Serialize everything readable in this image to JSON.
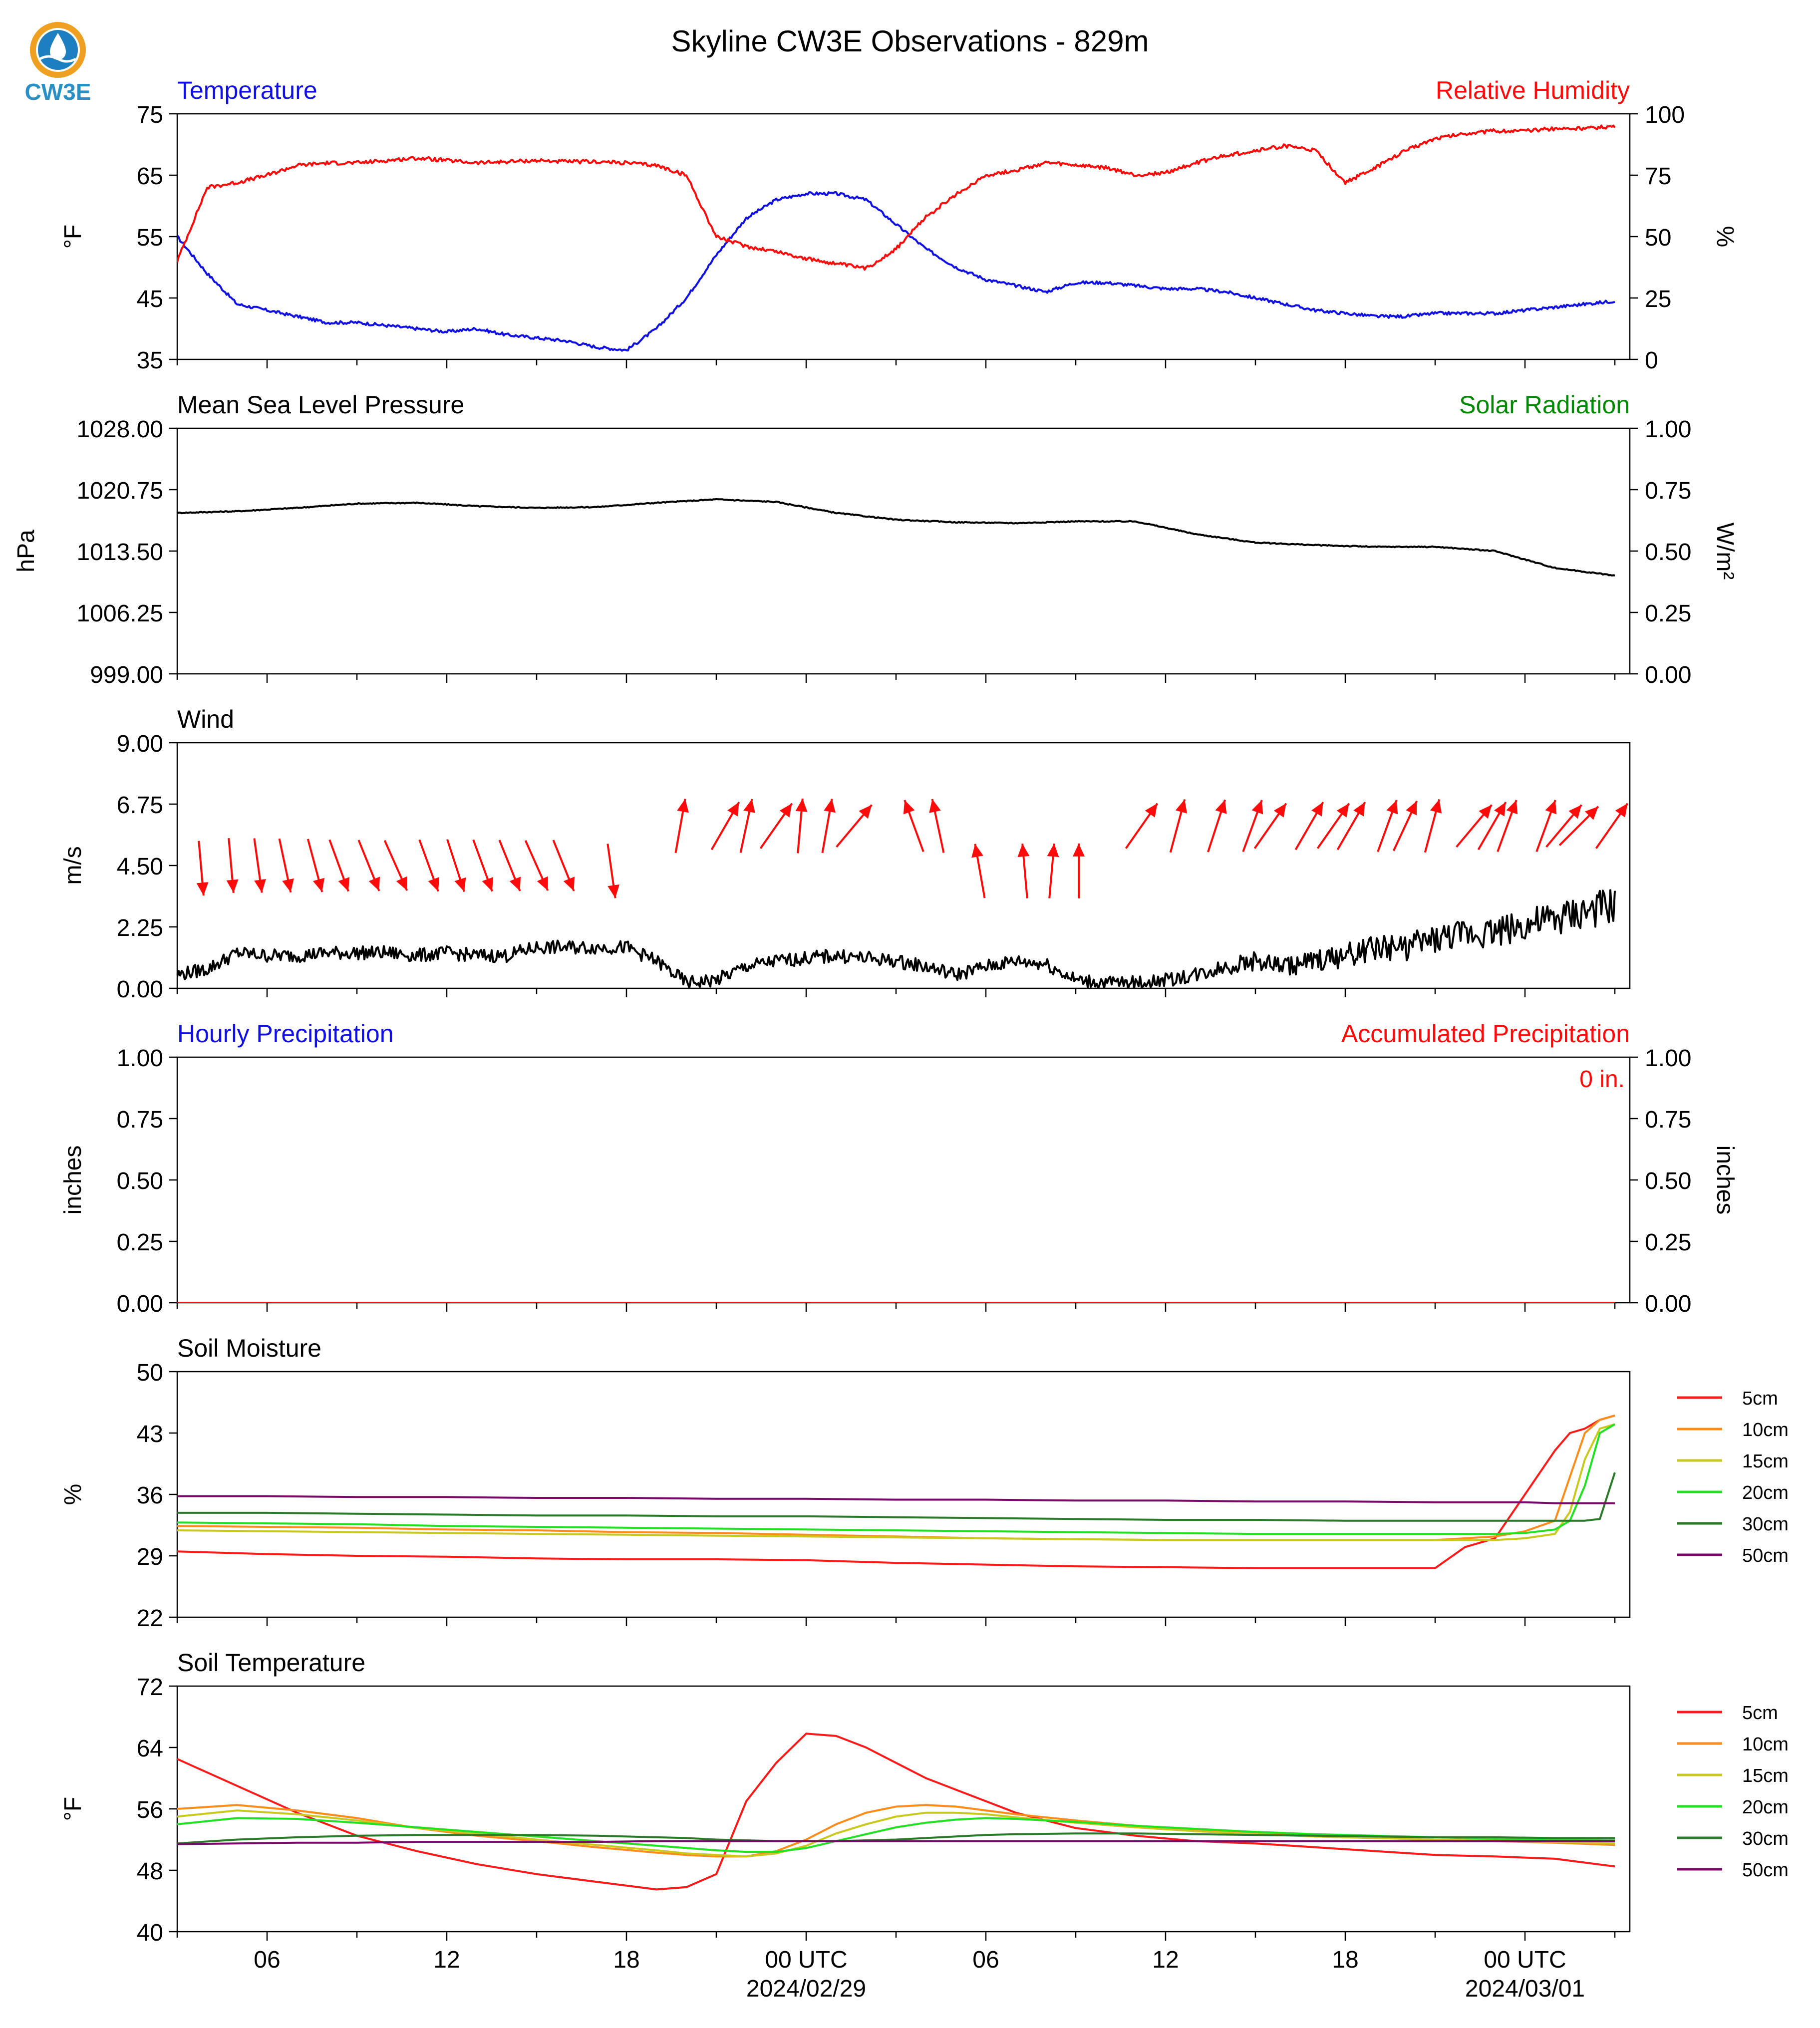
{
  "title": "Skyline CW3E Observations - 829m",
  "logo": {
    "text": "CW3E",
    "color": "#2a8fc4",
    "ring_color": "#f0a020"
  },
  "colors": {
    "blue": "#1010e0",
    "red": "#ff0a0a",
    "green": "#008800",
    "black": "#000000"
  },
  "time_axis": {
    "tick_labels": [
      "06",
      "12",
      "18",
      "00 UTC",
      "06",
      "12",
      "18",
      "00 UTC"
    ],
    "date_labels": [
      "2024/02/29",
      "2024/03/01"
    ]
  },
  "legend": {
    "labels": [
      "5cm",
      "10cm",
      "15cm",
      "20cm",
      "30cm",
      "50cm"
    ],
    "colors": [
      "#ff1a1a",
      "#ff8c1a",
      "#c8c81e",
      "#22e022",
      "#2a7a2a",
      "#7a0a6a"
    ]
  },
  "chart_data": [
    {
      "type": "line",
      "title_left": "Temperature",
      "title_right": "Relative Humidity",
      "ylabel_left": "°F",
      "ylabel_right": "%",
      "yticks_left": [
        "75",
        "65",
        "55",
        "45",
        "35"
      ],
      "yticks_right": [
        "100",
        "75",
        "50",
        "25",
        "0"
      ],
      "ylim_left": [
        35,
        75
      ],
      "ylim_right": [
        0,
        100
      ],
      "x_hours": [
        0,
        1,
        2,
        3,
        4,
        5,
        6,
        7,
        8,
        9,
        10,
        11,
        12,
        13,
        14,
        15,
        16,
        17,
        18,
        19,
        20,
        21,
        22,
        23,
        24,
        25,
        26,
        27,
        28,
        29,
        30,
        31,
        32,
        33,
        34,
        35,
        36,
        37,
        38,
        39,
        40,
        41,
        42,
        43,
        44,
        45,
        46,
        47,
        48
      ],
      "series": [
        {
          "name": "Temperature",
          "axis": "left",
          "color": "#1010e0",
          "values": [
            55,
            49,
            44,
            43,
            42,
            41,
            41,
            40.5,
            40,
            39.5,
            40,
            39,
            38.5,
            38,
            37,
            36.5,
            40,
            45,
            52,
            58,
            61,
            62,
            62,
            61,
            57,
            53,
            50,
            48,
            47,
            46,
            47.5,
            47.5,
            47,
            46.5,
            46.5,
            46,
            45,
            44,
            43,
            42.5,
            42,
            42,
            42.5,
            42.5,
            42.5,
            43,
            43.5,
            44,
            44.5
          ]
        },
        {
          "name": "Relative Humidity",
          "axis": "right",
          "color": "#ff0a0a",
          "values": [
            40,
            70,
            72,
            75,
            79,
            80,
            80,
            81,
            82,
            81,
            80,
            80.5,
            81,
            80.5,
            80.5,
            80,
            79,
            75,
            50,
            46,
            44,
            41,
            39,
            37,
            45,
            58,
            67,
            75,
            77,
            80,
            79,
            78,
            75,
            76,
            80,
            83,
            85,
            87,
            85,
            72,
            78,
            85,
            90,
            92,
            93,
            93,
            94,
            94,
            95
          ]
        }
      ]
    },
    {
      "type": "line",
      "title_left": "Mean Sea Level Pressure",
      "title_right": "Solar Radiation",
      "ylabel_left": "hPa",
      "ylabel_right": "W/m²",
      "yticks_left": [
        "1028.00",
        "1020.75",
        "1013.50",
        "1006.25",
        "999.00"
      ],
      "yticks_right": [
        "1.00",
        "0.75",
        "0.50",
        "0.25",
        "0.00"
      ],
      "ylim_left": [
        999,
        1028
      ],
      "ylim_right": [
        0,
        1
      ],
      "x_hours": [
        0,
        2,
        4,
        6,
        8,
        10,
        12,
        14,
        16,
        18,
        20,
        22,
        24,
        26,
        28,
        30,
        32,
        34,
        36,
        38,
        40,
        42,
        44,
        46,
        48
      ],
      "series": [
        {
          "name": "Mean Sea Level Pressure",
          "axis": "left",
          "color": "#000000",
          "values": [
            1018.0,
            1018.2,
            1018.6,
            1019.1,
            1019.2,
            1018.8,
            1018.6,
            1018.7,
            1019.2,
            1019.6,
            1019.3,
            1018.0,
            1017.2,
            1016.9,
            1016.8,
            1017.0,
            1017.0,
            1015.5,
            1014.5,
            1014.2,
            1014.0,
            1014.0,
            1013.5,
            1011.5,
            1010.6
          ]
        }
      ]
    },
    {
      "type": "line",
      "title_left": "Wind",
      "ylabel_left": "m/s",
      "yticks_left": [
        "9.00",
        "6.75",
        "4.50",
        "2.25",
        "0.00"
      ],
      "ylim_left": [
        0,
        9
      ],
      "x_hours": [
        0,
        1,
        2,
        3,
        4,
        5,
        6,
        7,
        8,
        9,
        10,
        11,
        12,
        13,
        14,
        15,
        16,
        17,
        18,
        19,
        20,
        21,
        22,
        23,
        24,
        25,
        26,
        27,
        28,
        29,
        30,
        31,
        32,
        33,
        34,
        35,
        36,
        37,
        38,
        39,
        40,
        41,
        42,
        43,
        44,
        45,
        46,
        47,
        48
      ],
      "series": [
        {
          "name": "Wind speed",
          "color": "#000000",
          "values": [
            0.5,
            0.7,
            1.3,
            1.2,
            1.2,
            1.3,
            1.3,
            1.3,
            1.2,
            1.3,
            1.2,
            1.2,
            1.5,
            1.5,
            1.5,
            1.5,
            1.0,
            0.2,
            0.3,
            0.8,
            1.0,
            1.1,
            1.2,
            1.1,
            1.0,
            0.8,
            0.5,
            0.8,
            1.0,
            0.9,
            0.3,
            0.2,
            0.2,
            0.3,
            0.5,
            0.8,
            1.0,
            0.8,
            1.0,
            1.2,
            1.5,
            1.5,
            1.8,
            2.0,
            2.1,
            2.3,
            2.5,
            2.8,
            3.0
          ]
        }
      ],
      "wind_barbs": {
        "hours": [
          0.8,
          1.8,
          2.7,
          3.6,
          4.6,
          5.4,
          6.4,
          7.3,
          8.4,
          9.3,
          10.2,
          11.1,
          12.0,
          12.9,
          14.5,
          16.8,
          18.3,
          19.0,
          20.0,
          20.8,
          21.7,
          22.6,
          24.6,
          25.4,
          26.8,
          28.3,
          29.2,
          30.1,
          32.2,
          33.4,
          34.7,
          35.9,
          36.5,
          37.8,
          38.6,
          39.2,
          40.4,
          41.0,
          41.9,
          43.3,
          43.9,
          44.4,
          45.7,
          46.3,
          46.8,
          47.9
        ],
        "speeds_ms": [
          4.4,
          4.5,
          4.5,
          4.5,
          4.5,
          4.5,
          4.5,
          4.5,
          4.5,
          4.5,
          4.5,
          4.5,
          4.5,
          4.5,
          4.3,
          6.5,
          6.5,
          6.5,
          6.5,
          6.5,
          6.5,
          6.5,
          6.5,
          6.5,
          4.3,
          4.3,
          4.3,
          4.3,
          6.5,
          6.5,
          6.5,
          6.5,
          6.5,
          6.5,
          6.5,
          6.5,
          6.5,
          6.5,
          6.5,
          6.5,
          6.5,
          6.5,
          6.5,
          6.5,
          6.5,
          6.5
        ],
        "directions_deg": [
          175,
          175,
          172,
          168,
          165,
          160,
          158,
          156,
          160,
          162,
          160,
          158,
          156,
          158,
          172,
          10,
          30,
          12,
          35,
          5,
          10,
          40,
          340,
          348,
          350,
          355,
          5,
          0,
          35,
          15,
          18,
          20,
          35,
          30,
          35,
          30,
          20,
          25,
          15,
          40,
          30,
          20,
          20,
          40,
          45,
          35
        ],
        "color": "#ff0a0a"
      }
    },
    {
      "type": "line",
      "title_left": "Hourly Precipitation",
      "title_right": "Accumulated Precipitation",
      "annotation": "0 in.",
      "ylabel_left": "inches",
      "ylabel_right": "inches",
      "yticks_left": [
        "1.00",
        "0.75",
        "0.50",
        "0.25",
        "0.00"
      ],
      "yticks_right": [
        "1.00",
        "0.75",
        "0.50",
        "0.25",
        "0.00"
      ],
      "ylim_left": [
        0,
        1
      ],
      "ylim_right": [
        0,
        1
      ],
      "x_hours": [
        0,
        48
      ],
      "series": [
        {
          "name": "Accumulated Precipitation",
          "axis": "right",
          "color": "#ff0a0a",
          "values": [
            0,
            0
          ]
        }
      ]
    },
    {
      "type": "line",
      "title_left": "Soil Moisture",
      "ylabel_left": "%",
      "yticks_left": [
        "50",
        "43",
        "36",
        "29",
        "22"
      ],
      "ylim_left": [
        22,
        50
      ],
      "x_hours": [
        0,
        3,
        6,
        9,
        12,
        15,
        18,
        21,
        24,
        27,
        30,
        33,
        36,
        39,
        42,
        43,
        44,
        45,
        46,
        46.5,
        47,
        47.5,
        48
      ],
      "series": [
        {
          "name": "5cm",
          "color": "#ff1a1a",
          "values": [
            29.5,
            29.2,
            29.0,
            28.9,
            28.7,
            28.6,
            28.6,
            28.5,
            28.2,
            28.0,
            27.8,
            27.7,
            27.6,
            27.6,
            27.6,
            30.0,
            31.0,
            36.0,
            41.0,
            43.0,
            43.5,
            44.5,
            45.0
          ]
        },
        {
          "name": "10cm",
          "color": "#ff8c1a",
          "values": [
            32.4,
            32.3,
            32.2,
            32.0,
            31.9,
            31.7,
            31.6,
            31.4,
            31.2,
            31.0,
            30.9,
            30.8,
            30.8,
            30.8,
            30.8,
            31.0,
            31.2,
            31.8,
            33.0,
            38.0,
            43.0,
            44.5,
            45.0
          ]
        },
        {
          "name": "15cm",
          "color": "#c8c81e",
          "values": [
            31.9,
            31.8,
            31.7,
            31.6,
            31.5,
            31.4,
            31.3,
            31.2,
            31.1,
            31.0,
            30.9,
            30.8,
            30.8,
            30.8,
            30.8,
            30.8,
            30.8,
            31.0,
            31.5,
            34.0,
            40.0,
            43.5,
            44.0
          ]
        },
        {
          "name": "20cm",
          "color": "#22e022",
          "values": [
            32.8,
            32.7,
            32.6,
            32.4,
            32.3,
            32.2,
            32.1,
            32.0,
            31.9,
            31.8,
            31.7,
            31.6,
            31.5,
            31.5,
            31.5,
            31.5,
            31.5,
            31.6,
            32.0,
            33.0,
            37.0,
            43.0,
            44.0
          ]
        },
        {
          "name": "30cm",
          "color": "#2a7a2a",
          "values": [
            33.9,
            33.9,
            33.8,
            33.7,
            33.6,
            33.6,
            33.5,
            33.5,
            33.4,
            33.3,
            33.2,
            33.1,
            33.1,
            33.0,
            33.0,
            33.0,
            33.0,
            33.0,
            33.0,
            33.0,
            33.0,
            33.2,
            38.5
          ]
        },
        {
          "name": "50cm",
          "color": "#7a0a6a",
          "values": [
            35.8,
            35.8,
            35.7,
            35.7,
            35.6,
            35.6,
            35.5,
            35.5,
            35.4,
            35.4,
            35.3,
            35.3,
            35.2,
            35.2,
            35.1,
            35.1,
            35.1,
            35.1,
            35.0,
            35.0,
            35.0,
            35.0,
            35.0
          ]
        }
      ]
    },
    {
      "type": "line",
      "title_left": "Soil Temperature",
      "ylabel_left": "°F",
      "yticks_left": [
        "72",
        "64",
        "56",
        "48",
        "40"
      ],
      "ylim_left": [
        40,
        72
      ],
      "x_hours": [
        0,
        2,
        4,
        6,
        8,
        10,
        12,
        14,
        16,
        17,
        18,
        19,
        20,
        21,
        22,
        23,
        24,
        25,
        26,
        27,
        28,
        30,
        32,
        34,
        36,
        38,
        40,
        42,
        44,
        46,
        48
      ],
      "series": [
        {
          "name": "5cm",
          "color": "#ff1a1a",
          "values": [
            62.5,
            59.0,
            55.5,
            52.5,
            50.5,
            48.8,
            47.5,
            46.5,
            45.5,
            45.8,
            47.5,
            57.0,
            62.0,
            65.8,
            65.5,
            64.0,
            62.0,
            60.0,
            58.5,
            57.0,
            55.5,
            53.5,
            52.5,
            51.8,
            51.5,
            51.0,
            50.5,
            50.0,
            49.8,
            49.5,
            48.5
          ]
        },
        {
          "name": "10cm",
          "color": "#ff8c1a",
          "values": [
            56.0,
            56.5,
            55.8,
            54.8,
            53.5,
            52.5,
            51.8,
            51.0,
            50.3,
            50.0,
            49.8,
            49.8,
            50.5,
            52.0,
            54.0,
            55.5,
            56.3,
            56.5,
            56.3,
            55.8,
            55.3,
            54.5,
            53.8,
            53.2,
            52.8,
            52.4,
            52.2,
            52.0,
            51.8,
            51.6,
            51.3
          ]
        },
        {
          "name": "15cm",
          "color": "#c8c81e",
          "values": [
            55.0,
            55.8,
            55.3,
            54.5,
            53.5,
            52.8,
            52.0,
            51.3,
            50.6,
            50.2,
            50.0,
            49.8,
            50.2,
            51.2,
            52.8,
            54.0,
            55.0,
            55.5,
            55.5,
            55.3,
            54.9,
            54.2,
            53.6,
            53.1,
            52.7,
            52.4,
            52.2,
            52.0,
            51.9,
            51.7,
            51.5
          ]
        },
        {
          "name": "20cm",
          "color": "#22e022",
          "values": [
            54.0,
            54.8,
            54.7,
            54.2,
            53.6,
            53.0,
            52.4,
            51.8,
            51.2,
            50.9,
            50.6,
            50.4,
            50.4,
            50.9,
            51.8,
            52.7,
            53.6,
            54.2,
            54.6,
            54.8,
            54.7,
            54.3,
            53.8,
            53.4,
            53.0,
            52.7,
            52.5,
            52.3,
            52.1,
            52.0,
            51.9
          ]
        },
        {
          "name": "30cm",
          "color": "#2a7a2a",
          "values": [
            51.5,
            52.0,
            52.3,
            52.5,
            52.6,
            52.6,
            52.6,
            52.5,
            52.3,
            52.2,
            52.0,
            51.9,
            51.8,
            51.8,
            51.8,
            51.9,
            52.0,
            52.2,
            52.4,
            52.6,
            52.7,
            52.8,
            52.8,
            52.7,
            52.6,
            52.5,
            52.4,
            52.3,
            52.3,
            52.2,
            52.2
          ]
        },
        {
          "name": "50cm",
          "color": "#7a0a6a",
          "values": [
            51.4,
            51.5,
            51.6,
            51.6,
            51.7,
            51.7,
            51.7,
            51.7,
            51.8,
            51.8,
            51.8,
            51.8,
            51.8,
            51.8,
            51.8,
            51.8,
            51.8,
            51.8,
            51.8,
            51.8,
            51.8,
            51.8,
            51.8,
            51.8,
            51.8,
            51.8,
            51.8,
            51.8,
            51.8,
            51.8,
            51.8
          ]
        }
      ]
    }
  ]
}
